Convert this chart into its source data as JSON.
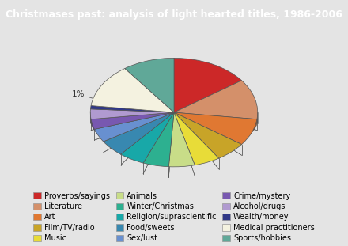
{
  "title": "Christmases past: analysis of light hearted titles, 1986-2006",
  "title_bg": "#c0272d",
  "title_color": "#ffffff",
  "categories": [
    "Proverbs/sayings",
    "Literature",
    "Art",
    "Film/TV/radio",
    "Music",
    "Animals",
    "Winter/Christmas",
    "Religion/suprascientific",
    "Food/sweets",
    "Sex/lust",
    "Crime/mystery",
    "Alcohol/drugs",
    "Wealth/money",
    "Medical practitioners",
    "Sports/hobbies"
  ],
  "values": [
    15,
    12,
    8,
    6,
    5,
    5,
    5,
    5,
    5,
    4,
    3,
    3,
    1,
    13,
    10
  ],
  "colors": [
    "#cc2828",
    "#d4906a",
    "#e07832",
    "#c8a428",
    "#e8dc38",
    "#c8dd88",
    "#2db090",
    "#18a8a8",
    "#3888b0",
    "#6890d0",
    "#7858b0",
    "#b09ad0",
    "#303888",
    "#f4f2e0",
    "#60a898"
  ],
  "background_color": "#e4e4e4",
  "legend_fontsize": 7.0,
  "pct_fontsize": 7.5,
  "pct_color": "#333333"
}
